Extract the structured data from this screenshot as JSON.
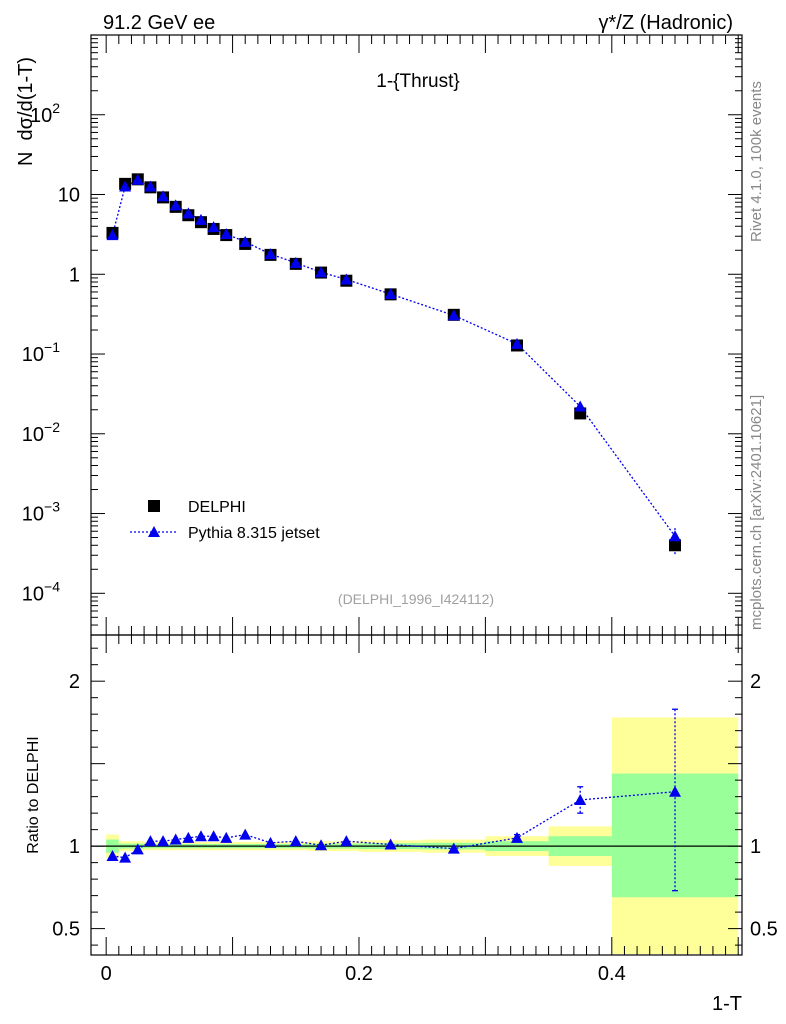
{
  "header": {
    "left_label": "91.2 GeV ee",
    "right_label": "γ*/Z (Hadronic)"
  },
  "side_labels": {
    "rivet": "Rivet 4.1.0,  100k events",
    "mcplots": "mcplots.cern.ch [arXiv:2401.10621]"
  },
  "chart_data": [
    {
      "type": "scatter",
      "title": "1-{Thrust}",
      "analysis_label": "(DELPHI_1996_I424112)",
      "xlabel": "1-T",
      "ylabel": "N  dσ/d(1-T)",
      "yscale": "log",
      "xlim": [
        -0.012,
        0.503
      ],
      "ylim": [
        3e-05,
        1000
      ],
      "yticks": [
        {
          "value": 0.0001,
          "label": "10",
          "exp": "−4"
        },
        {
          "value": 0.001,
          "label": "10",
          "exp": "−3"
        },
        {
          "value": 0.01,
          "label": "10",
          "exp": "−2"
        },
        {
          "value": 0.1,
          "label": "10",
          "exp": "−1"
        },
        {
          "value": 1,
          "label": "1",
          "exp": ""
        },
        {
          "value": 10,
          "label": "10",
          "exp": ""
        },
        {
          "value": 100,
          "label": "10",
          "exp": "2"
        }
      ],
      "legend": {
        "position": "bottom-left",
        "entries": [
          "DELPHI",
          "Pythia 8.315 jetset"
        ]
      },
      "x": [
        0.005,
        0.015,
        0.025,
        0.035,
        0.045,
        0.055,
        0.065,
        0.075,
        0.085,
        0.095,
        0.11,
        0.13,
        0.15,
        0.17,
        0.19,
        0.225,
        0.275,
        0.325,
        0.375,
        0.45
      ],
      "series": [
        {
          "name": "DELPHI",
          "values": [
            3.3,
            13.6,
            15.5,
            12.3,
            9.2,
            7.0,
            5.5,
            4.5,
            3.7,
            3.1,
            2.4,
            1.75,
            1.35,
            1.05,
            0.83,
            0.56,
            0.31,
            0.128,
            0.018,
            0.0004
          ]
        },
        {
          "name": "Pythia 8.315 jetset",
          "values": [
            3.1,
            12.6,
            15.3,
            12.6,
            9.5,
            7.3,
            5.8,
            4.8,
            3.9,
            3.2,
            2.55,
            1.79,
            1.39,
            1.06,
            0.86,
            0.565,
            0.305,
            0.134,
            0.022,
            0.00052
          ]
        }
      ]
    },
    {
      "type": "scatter",
      "title": "",
      "xlabel": "1-T",
      "ylabel": "Ratio to DELPHI",
      "xlim": [
        -0.012,
        0.503
      ],
      "ylim": [
        0.34,
        2.28
      ],
      "xticks": [
        {
          "value": 0,
          "label": "0"
        },
        {
          "value": 0.2,
          "label": "0.2"
        },
        {
          "value": 0.4,
          "label": "0.4"
        }
      ],
      "yticks": [
        {
          "value": 0.5,
          "label": "0.5"
        },
        {
          "value": 1,
          "label": "1"
        },
        {
          "value": 2,
          "label": "2"
        }
      ],
      "reference_line": 1,
      "bin_edges": [
        0,
        0.01,
        0.02,
        0.03,
        0.04,
        0.05,
        0.06,
        0.07,
        0.08,
        0.09,
        0.1,
        0.12,
        0.14,
        0.16,
        0.18,
        0.2,
        0.25,
        0.3,
        0.35,
        0.4,
        0.5
      ],
      "yellow_band": [
        [
          0.93,
          1.07
        ],
        [
          0.97,
          1.03
        ],
        [
          0.97,
          1.03
        ],
        [
          0.975,
          1.025
        ],
        [
          0.975,
          1.025
        ],
        [
          0.975,
          1.025
        ],
        [
          0.975,
          1.025
        ],
        [
          0.975,
          1.025
        ],
        [
          0.975,
          1.025
        ],
        [
          0.975,
          1.025
        ],
        [
          0.975,
          1.025
        ],
        [
          0.975,
          1.025
        ],
        [
          0.975,
          1.025
        ],
        [
          0.97,
          1.03
        ],
        [
          0.97,
          1.03
        ],
        [
          0.965,
          1.035
        ],
        [
          0.96,
          1.04
        ],
        [
          0.94,
          1.06
        ],
        [
          0.88,
          1.12
        ],
        [
          0.34,
          1.78
        ]
      ],
      "green_band": [
        [
          0.96,
          1.04
        ],
        [
          0.985,
          1.015
        ],
        [
          0.985,
          1.015
        ],
        [
          0.987,
          1.013
        ],
        [
          0.987,
          1.013
        ],
        [
          0.987,
          1.013
        ],
        [
          0.987,
          1.013
        ],
        [
          0.987,
          1.013
        ],
        [
          0.987,
          1.013
        ],
        [
          0.987,
          1.013
        ],
        [
          0.987,
          1.013
        ],
        [
          0.987,
          1.013
        ],
        [
          0.987,
          1.013
        ],
        [
          0.985,
          1.015
        ],
        [
          0.985,
          1.015
        ],
        [
          0.982,
          1.018
        ],
        [
          0.98,
          1.02
        ],
        [
          0.97,
          1.03
        ],
        [
          0.94,
          1.06
        ],
        [
          0.69,
          1.44
        ]
      ],
      "series": [
        {
          "name": "Pythia 8.315 jetset",
          "values": [
            0.94,
            0.93,
            0.98,
            1.03,
            1.03,
            1.04,
            1.05,
            1.06,
            1.06,
            1.05,
            1.07,
            1.02,
            1.03,
            1.005,
            1.03,
            1.01,
            0.985,
            1.05,
            1.28,
            1.33
          ],
          "err_low": [
            0,
            0,
            0,
            0,
            0,
            0,
            0,
            0,
            0,
            0,
            0,
            0,
            0,
            0,
            0,
            0,
            0,
            0.02,
            0.08,
            0.6
          ],
          "err_high": [
            0,
            0,
            0,
            0,
            0,
            0,
            0,
            0,
            0,
            0,
            0,
            0,
            0,
            0,
            0,
            0,
            0,
            0.02,
            0.08,
            0.5
          ]
        }
      ]
    }
  ]
}
